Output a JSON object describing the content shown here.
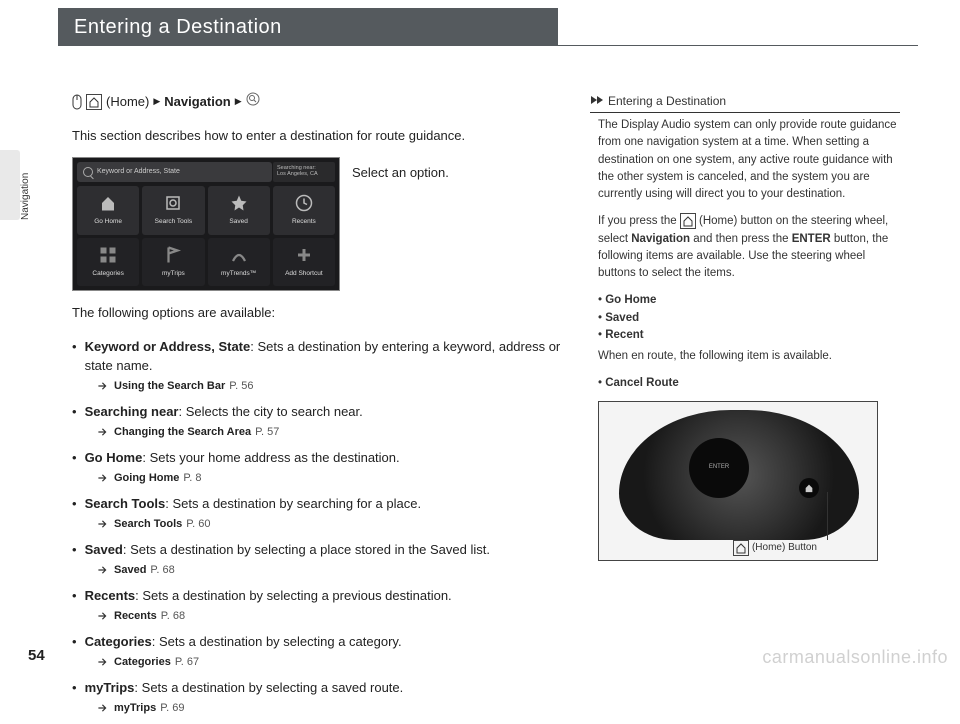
{
  "page_number": "54",
  "watermark": "carmanualsonline.info",
  "side_tab": "Navigation",
  "header_title": "Entering a Destination",
  "breadcrumb": {
    "home_label": "(Home)",
    "arrow": "▶",
    "nav_label": "Navigation"
  },
  "intro": "This section describes how to enter a destination for route guidance.",
  "select_option": "Select an option.",
  "nav_ui": {
    "searchbar_text": "Keyword or Address, State",
    "near_line1": "Searching near:",
    "near_line2": "Los Angeles, CA",
    "cells": [
      {
        "label": "Go Home",
        "icon": "home"
      },
      {
        "label": "Search Tools",
        "icon": "search"
      },
      {
        "label": "Saved",
        "icon": "star"
      },
      {
        "label": "Recents",
        "icon": "clock"
      },
      {
        "label": "Categories",
        "icon": "grid"
      },
      {
        "label": "myTrips",
        "icon": "flag"
      },
      {
        "label": "myTrends™",
        "icon": "route"
      },
      {
        "label": "Add Shortcut",
        "icon": "plus"
      }
    ]
  },
  "options_intro": "The following options are available:",
  "options": [
    {
      "term": "Keyword or Address, State",
      "desc": ": Sets a destination by entering a keyword, address or state name.",
      "ref": "Using the Search Bar",
      "page": "P. 56"
    },
    {
      "term": "Searching near",
      "desc": ": Selects the city to search near.",
      "ref": "Changing the Search Area",
      "page": "P. 57"
    },
    {
      "term": "Go Home",
      "desc": ": Sets your home address as the destination.",
      "ref": "Going Home",
      "page": "P. 8"
    },
    {
      "term": "Search Tools",
      "desc": ": Sets a destination by searching for a place.",
      "ref": "Search Tools",
      "page": "P. 60"
    },
    {
      "term": "Saved",
      "desc": ": Sets a destination by selecting a place stored in the Saved list.",
      "ref": "Saved",
      "page": "P. 68"
    },
    {
      "term": "Recents",
      "desc": ": Sets a destination by selecting a previous destination.",
      "ref": "Recents",
      "page": "P. 68"
    },
    {
      "term": "Categories",
      "desc": ": Sets a destination by selecting a category.",
      "ref": "Categories",
      "page": "P. 67"
    },
    {
      "term": "myTrips",
      "desc": ": Sets a destination by selecting a saved route.",
      "ref": "myTrips",
      "page": "P. 69"
    }
  ],
  "sidebar": {
    "title": "Entering a Destination",
    "para1": "The Display Audio system can only provide route guidance from one navigation system at a time. When setting a destination on one system, any active route guidance with the other system is canceled, and the system you are currently using will direct you to your destination.",
    "para2a": "If you press the ",
    "para2b": " (Home) button on the steering wheel, select ",
    "nav_word": "Navigation",
    "para2c": " and then press the ",
    "enter_word": "ENTER",
    "para2d": " button, the following items are available. Use the steering wheel buttons to select the items.",
    "list": [
      "Go Home",
      "Saved",
      "Recent"
    ],
    "para3": "When en route, the following item is available.",
    "list2": [
      "Cancel Route"
    ],
    "home_caption": "(Home) Button"
  }
}
